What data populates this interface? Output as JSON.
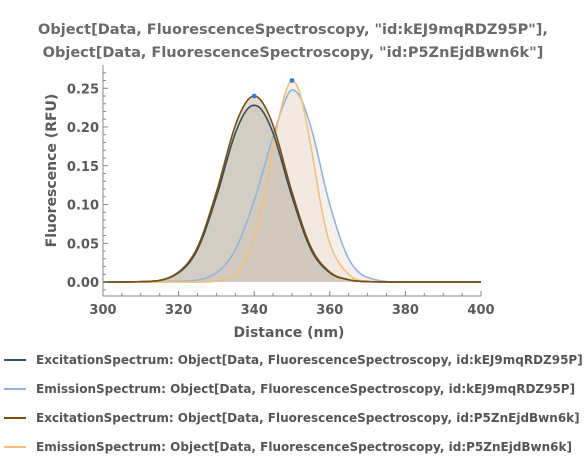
{
  "chart_data": {
    "type": "area",
    "title_lines": [
      "Object[Data, FluorescenceSpectroscopy, \"id:kEJ9mqRDZ95P\"],",
      "Object[Data, FluorescenceSpectroscopy, \"id:P5ZnEjdBwn6k\"]"
    ],
    "xlabel": "Distance  (nm)",
    "ylabel": "Fluorescence  (RFU)",
    "xlim": [
      300,
      400
    ],
    "ylim": [
      -0.018,
      0.28
    ],
    "x_ticks": [
      "300",
      "320",
      "340",
      "360",
      "380",
      "400"
    ],
    "y_ticks": [
      "0.00",
      "0.05",
      "0.10",
      "0.15",
      "0.20",
      "0.25"
    ],
    "x_tick_values": [
      300,
      320,
      340,
      360,
      380,
      400
    ],
    "y_tick_values": [
      0,
      0.05,
      0.1,
      0.15,
      0.2,
      0.25
    ],
    "grid": false,
    "legend_placement": "bottom",
    "series": [
      {
        "name": "ExcitationSpectrum: Object[Data, FluorescenceSpectroscopy, id:kEJ9mqRDZ95P]",
        "color": "#3c4c5c",
        "fill": "#c9c1b4",
        "x": [
          300,
          310,
          320,
          325,
          330,
          335,
          338,
          340,
          342,
          345,
          350,
          355,
          360,
          365,
          370,
          380,
          400
        ],
        "y": [
          0.0,
          0.0005,
          0.012,
          0.042,
          0.11,
          0.192,
          0.222,
          0.228,
          0.222,
          0.192,
          0.11,
          0.042,
          0.012,
          0.003,
          0.0005,
          0.0,
          0.0
        ]
      },
      {
        "name": "EmissionSpectrum: Object[Data, FluorescenceSpectroscopy, id:kEJ9mqRDZ95P]",
        "color": "#94b4d8",
        "fill": "#ece4db",
        "x": [
          300,
          320,
          330,
          335,
          340,
          345,
          348,
          350,
          352,
          355,
          360,
          365,
          370,
          380,
          400
        ],
        "y": [
          0.0,
          0.001,
          0.012,
          0.042,
          0.105,
          0.188,
          0.232,
          0.248,
          0.24,
          0.2,
          0.1,
          0.03,
          0.006,
          0.0,
          0.0
        ]
      },
      {
        "name": "ExcitationSpectrum: Object[Data, FluorescenceSpectroscopy, id:P5ZnEjdBwn6k]",
        "color": "#7a4f10",
        "fill": "#c9c1b4",
        "x": [
          300,
          310,
          320,
          325,
          330,
          335,
          338,
          340,
          342,
          345,
          350,
          355,
          360,
          365,
          370,
          380,
          400
        ],
        "y": [
          0.0,
          0.0005,
          0.013,
          0.045,
          0.116,
          0.202,
          0.233,
          0.24,
          0.233,
          0.202,
          0.116,
          0.045,
          0.013,
          0.003,
          0.0005,
          0.0,
          0.0
        ]
      },
      {
        "name": "EmissionSpectrum: Object[Data, FluorescenceSpectroscopy, id:P5ZnEjdBwn6k]",
        "color": "#f4c07a",
        "fill": "#ece4db",
        "x": [
          300,
          325,
          335,
          340,
          343,
          345,
          348,
          350,
          352,
          355,
          358,
          360,
          365,
          370,
          380,
          400
        ],
        "y": [
          0.0,
          0.0,
          0.01,
          0.06,
          0.12,
          0.175,
          0.24,
          0.26,
          0.245,
          0.175,
          0.09,
          0.05,
          0.01,
          0.001,
          0.0,
          0.0
        ]
      }
    ],
    "peak_markers": [
      {
        "x": 340,
        "y": 0.24,
        "color": "#2d7ed8"
      },
      {
        "x": 350,
        "y": 0.26,
        "color": "#2d7ed8"
      }
    ]
  }
}
